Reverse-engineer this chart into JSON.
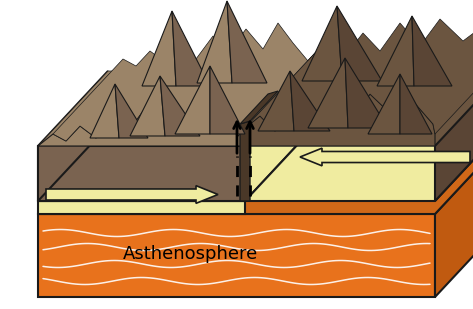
{
  "bg_color": "#ffffff",
  "ast_orange": "#E8721C",
  "ast_orange_top": "#D06818",
  "ast_orange_side": "#C05A10",
  "plate_left_top": "#9B8468",
  "plate_left_front": "#7A6350",
  "plate_left_side": "#7A6350",
  "plate_right_top": "#6B5540",
  "plate_right_side": "#5A4535",
  "yellow_layer": "#F0ECA0",
  "outline_color": "#1a1a1a",
  "rift_fill": "#4A3828",
  "text_asthenosphere": "Asthenosphere",
  "text_color": "#000000",
  "white_line": "#ffffff"
}
